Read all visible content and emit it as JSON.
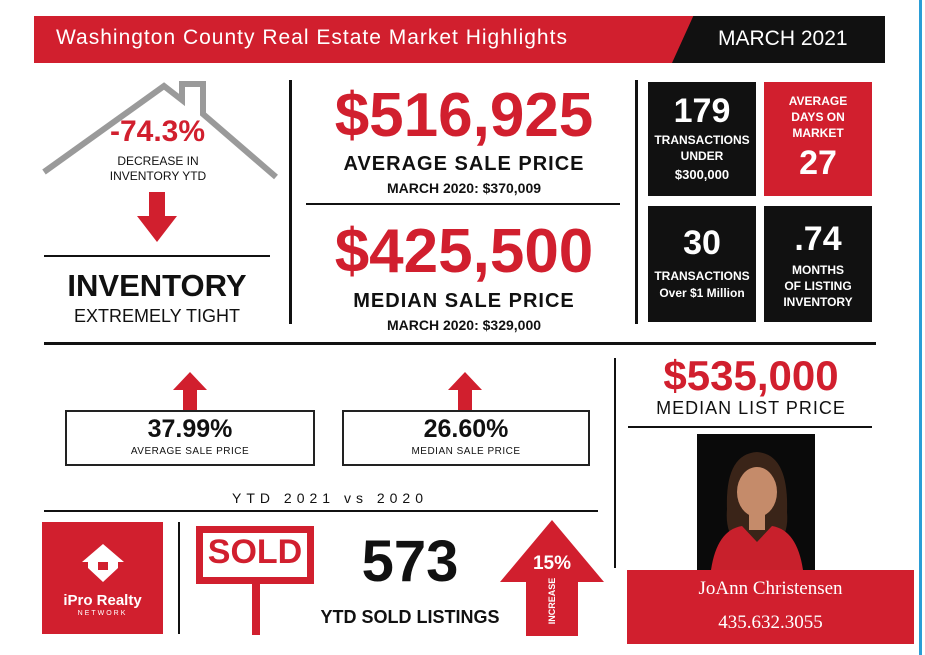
{
  "header": {
    "title": "Washington County Real Estate Market Highlights",
    "month": "MARCH 2021"
  },
  "inventory": {
    "change_pct": "-74.3%",
    "change_label_1": "DECREASE IN",
    "change_label_2": "INVENTORY YTD",
    "heading": "INVENTORY",
    "subheading": "EXTREMELY TIGHT"
  },
  "average_sale": {
    "value": "$516,925",
    "label": "AVERAGE SALE PRICE",
    "prior": "MARCH 2020: $370,009"
  },
  "median_sale": {
    "value": "$425,500",
    "label": "MEDIAN SALE PRICE",
    "prior": "MARCH 2020: $329,000"
  },
  "tiles": {
    "under_300k": {
      "value": "179",
      "line1": "TRANSACTIONS",
      "line2": "UNDER",
      "line3": "$300,000"
    },
    "days_on_market": {
      "line1": "AVERAGE",
      "line2": "DAYS ON",
      "line3": "MARKET",
      "value": "27"
    },
    "over_1m": {
      "value": "30",
      "line1": "TRANSACTIONS",
      "line2": "Over $1 Million"
    },
    "months_inventory": {
      "value": ".74",
      "line1": "MONTHS",
      "line2": "OF LISTING",
      "line3": "INVENTORY"
    }
  },
  "ytd": {
    "avg_pct": "37.99%",
    "avg_label": "AVERAGE SALE PRICE",
    "median_pct": "26.60%",
    "median_label": "MEDIAN SALE PRICE",
    "caption": "YTD 2021 vs 2020"
  },
  "median_list": {
    "value": "$535,000",
    "label": "MEDIAN LIST PRICE"
  },
  "sold": {
    "sign": "SOLD",
    "count": "573",
    "label": "YTD SOLD LISTINGS",
    "pct": "15%",
    "pct_label": "INCREASE"
  },
  "brand": {
    "name": "iPro Realty",
    "network": "NETWORK"
  },
  "agent": {
    "name": "JoAnn Christensen",
    "phone": "435.632.3055"
  },
  "colors": {
    "accent": "#d11f2e",
    "dark": "#111111",
    "edge": "#2a9dd6"
  }
}
